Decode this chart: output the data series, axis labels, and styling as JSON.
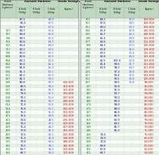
{
  "bg_color": "#d8ead8",
  "header_bg": "#c0d8c0",
  "row_bg_even": "#e8f0e8",
  "row_bg_odd": "#f8fff8",
  "left_table": [
    [
      "-",
      "87.1",
      "-",
      "68.0",
      "-"
    ],
    [
      "-",
      "85.3",
      "-",
      "67.5",
      "-"
    ],
    [
      "-",
      "84.9",
      "-",
      "67.0",
      "-"
    ],
    [
      "767",
      "84.7",
      "-",
      "66.4",
      "-"
    ],
    [
      "757",
      "84.4",
      "-",
      "65.9",
      "-"
    ],
    [
      "746",
      "84.1",
      "-",
      "65.3",
      "-"
    ],
    [
      "733",
      "83.8",
      "-",
      "64.7",
      "-"
    ],
    [
      "722",
      "83.4",
      "-",
      "64.0",
      "-"
    ],
    [
      "712",
      "83.2",
      "-",
      "63.5",
      "-"
    ],
    [
      "706",
      "83.0",
      "-",
      "63.2",
      "-"
    ],
    [
      "688",
      "82.8",
      "-",
      "62.5",
      "-"
    ],
    [
      "684",
      "82.2",
      "-",
      "61.8",
      "-"
    ],
    [
      "682",
      "82.2",
      "-",
      "61.1",
      "-"
    ],
    [
      "670",
      "81.8",
      "-",
      "61.0",
      "-"
    ],
    [
      "560",
      "81.3",
      "-",
      "60.1",
      "-"
    ],
    [
      "553",
      "81.2",
      "-",
      "60.0",
      "-"
    ],
    [
      "547",
      "81.1",
      "-",
      "59.1",
      "-"
    ],
    [
      "538",
      "80.8",
      "-",
      "58.7",
      "326,000"
    ],
    [
      "530",
      "80.5",
      "-",
      "58.2",
      "314,000"
    ],
    [
      "527",
      "80.6",
      "-",
      "58.7",
      "323,000"
    ],
    [
      "534",
      "79.8",
      "-",
      "57.3",
      "309,000"
    ],
    [
      "528",
      "79.1",
      "-",
      "56.0",
      "297,000"
    ],
    [
      "500",
      "78.4",
      "-",
      "54.7",
      "289,000"
    ],
    [
      "514",
      "71.8",
      "-",
      "53.5",
      "274,000"
    ],
    [
      "514",
      "76.8",
      "-",
      "52.1",
      "260,000"
    ],
    [
      "460",
      "76.3",
      "-",
      "51.0",
      "253,000"
    ],
    [
      "471",
      "75.6",
      "-",
      "49.6",
      "241,000"
    ],
    [
      "451",
      "74.8",
      "-",
      "48.5",
      "235,000"
    ],
    [
      "444",
      "74.2",
      "-",
      "47.1",
      "229,000"
    ],
    [
      "429",
      "71.4",
      "-",
      "46.1",
      "217,000"
    ],
    [
      "429",
      "73.8",
      "-",
      "45.3",
      "216,000"
    ],
    [
      "401",
      "72.6",
      "-",
      "43.1",
      "202,000"
    ],
    [
      "388",
      "71.4",
      "-",
      "41.8",
      "194,000"
    ],
    [
      "375",
      "70.8",
      "-",
      "40.4",
      "188,000"
    ],
    [
      "363",
      "70.5",
      "-",
      "38.1",
      "182,000"
    ],
    [
      "352",
      "69.7",
      "-",
      "36.9",
      "170,000"
    ],
    [
      "341",
      "68.7",
      "-",
      "36.0",
      "170,000"
    ]
  ],
  "right_table": [
    [
      "331",
      "68.1",
      "-",
      "35.0",
      "160,000"
    ],
    [
      "321",
      "67.6",
      "-",
      "34.5",
      "160,000"
    ],
    [
      "311",
      "68.0",
      "-",
      "33.1",
      "150,000"
    ],
    [
      "302",
      "66.3",
      "-",
      "32.8",
      "145,000"
    ],
    [
      "293",
      "65.7",
      "-",
      "32.2",
      "140,000"
    ],
    [
      "285",
      "65.3",
      "-",
      "29.8",
      "141,000"
    ],
    [
      "277",
      "64.6",
      "-",
      "28.8",
      "132,000"
    ],
    [
      "269",
      "64.1",
      "-",
      "27.6",
      "130,000"
    ],
    [
      "262",
      "63.8",
      "-",
      "26.6",
      "128,000"
    ],
    [
      "255",
      "63.5",
      "-",
      "25.4",
      "125,000"
    ],
    [
      "248",
      "62.8",
      "-",
      "24.2",
      "122,000"
    ],
    [
      "241",
      "61.5",
      "100.0",
      "22.8",
      "118,000"
    ],
    [
      "235",
      "61.4",
      "99.6",
      "21.7",
      "115,000"
    ],
    [
      "229",
      "60.9",
      "98.2",
      "20.5",
      "111,000"
    ],
    [
      "223",
      "-",
      "97.3",
      "18.8",
      "105,000"
    ],
    [
      "217",
      "-",
      "96.4",
      "17.5",
      "102,000"
    ],
    [
      "212",
      "-",
      "95.5",
      "16.8",
      "100,000"
    ],
    [
      "207",
      "-",
      "94.5",
      "15.8",
      "98,000"
    ],
    [
      "197",
      "-",
      "92.8",
      "-",
      "95,000"
    ],
    [
      "192",
      "-",
      "91.9",
      "-",
      "90,000"
    ],
    [
      "187",
      "-",
      "90.7",
      "-",
      "90,000"
    ],
    [
      "183",
      "-",
      "90.0",
      "-",
      "89,000"
    ],
    [
      "180",
      "-",
      "89.9",
      "-",
      "87,000"
    ],
    [
      "174",
      "-",
      "98.8",
      "-",
      "85,000"
    ],
    [
      "170",
      "-",
      "88.0",
      "-",
      "83,000"
    ],
    [
      "167",
      "-",
      "86.9",
      "-",
      "81,000"
    ],
    [
      "163",
      "-",
      "85.9",
      "-",
      "81,000"
    ],
    [
      "159",
      "-",
      "83.9",
      "-",
      "79,000"
    ],
    [
      "156",
      "-",
      "83.5",
      "-",
      "76,000"
    ],
    [
      "149",
      "-",
      "81.7",
      "-",
      "73,000"
    ],
    [
      "146",
      "-",
      "81.2",
      "-",
      "71,000"
    ],
    [
      "143",
      "70.4",
      "-",
      "-",
      "71,000"
    ],
    [
      "131",
      "74.9",
      "-",
      "-",
      "65,000"
    ],
    [
      "128",
      "72.8",
      "-",
      "-",
      "63,000"
    ],
    [
      "121",
      "68.8",
      "-",
      "-",
      "60,000"
    ],
    [
      "116",
      "67.8",
      "-",
      "-",
      "56,000"
    ],
    [
      "111",
      "68.7",
      "-",
      "-",
      "54,000"
    ]
  ],
  "col_colors": [
    "#007700",
    "#000088",
    "#000088",
    "#4444ff",
    "#cc0000"
  ],
  "dash_color": "#888888",
  "header_text_color": "#000000",
  "font_size": 2.8,
  "header_font_size": 2.5
}
